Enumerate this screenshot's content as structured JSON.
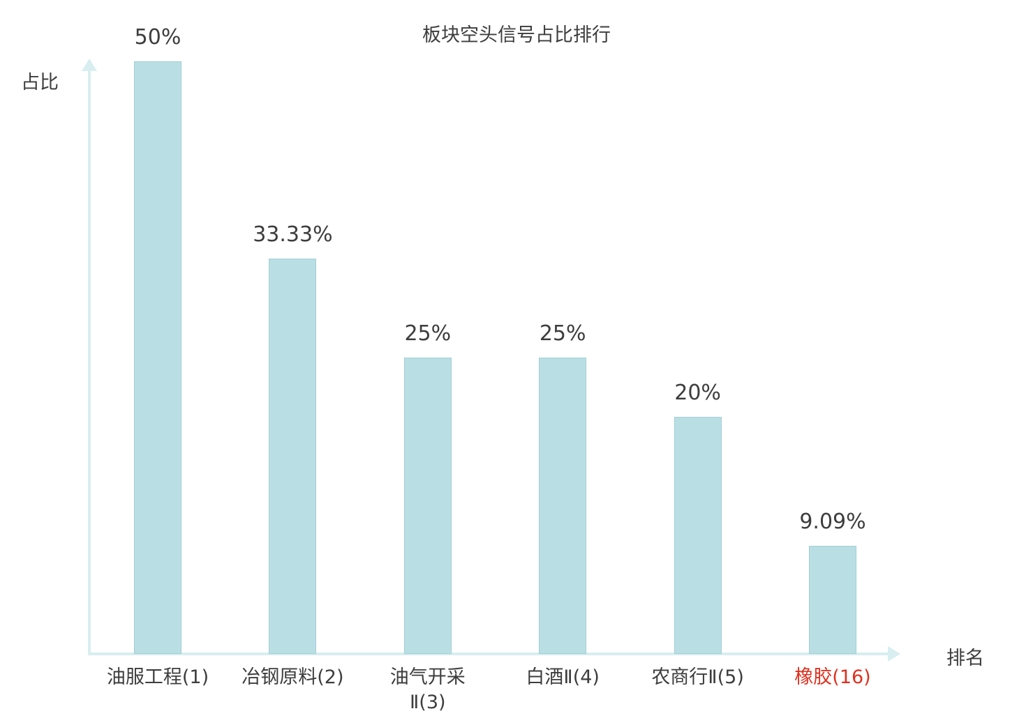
{
  "chart_data": {
    "type": "bar",
    "title": "板块空头信号占比排行",
    "ylabel": "占比",
    "xlabel": "排名",
    "categories": [
      "油服工程(1)",
      "冶钢原料(2)",
      "油气开采\nⅡ(3)",
      "白酒Ⅱ(4)",
      "农商行Ⅱ(5)",
      "橡胶(16)"
    ],
    "values": [
      50,
      33.33,
      25,
      25,
      20,
      9.09
    ],
    "value_labels": [
      "50%",
      "33.33%",
      "25%",
      "25%",
      "20%",
      "9.09%"
    ],
    "highlight_index": 5,
    "ylim": [
      0,
      55
    ],
    "legend": "none",
    "grid": false,
    "colors": {
      "bar_fill": "#b9dfe4",
      "bar_border": "#a3ced5",
      "axis": "#d8eef0",
      "text": "#3d3d3d",
      "highlight_text": "#e0301e"
    }
  }
}
